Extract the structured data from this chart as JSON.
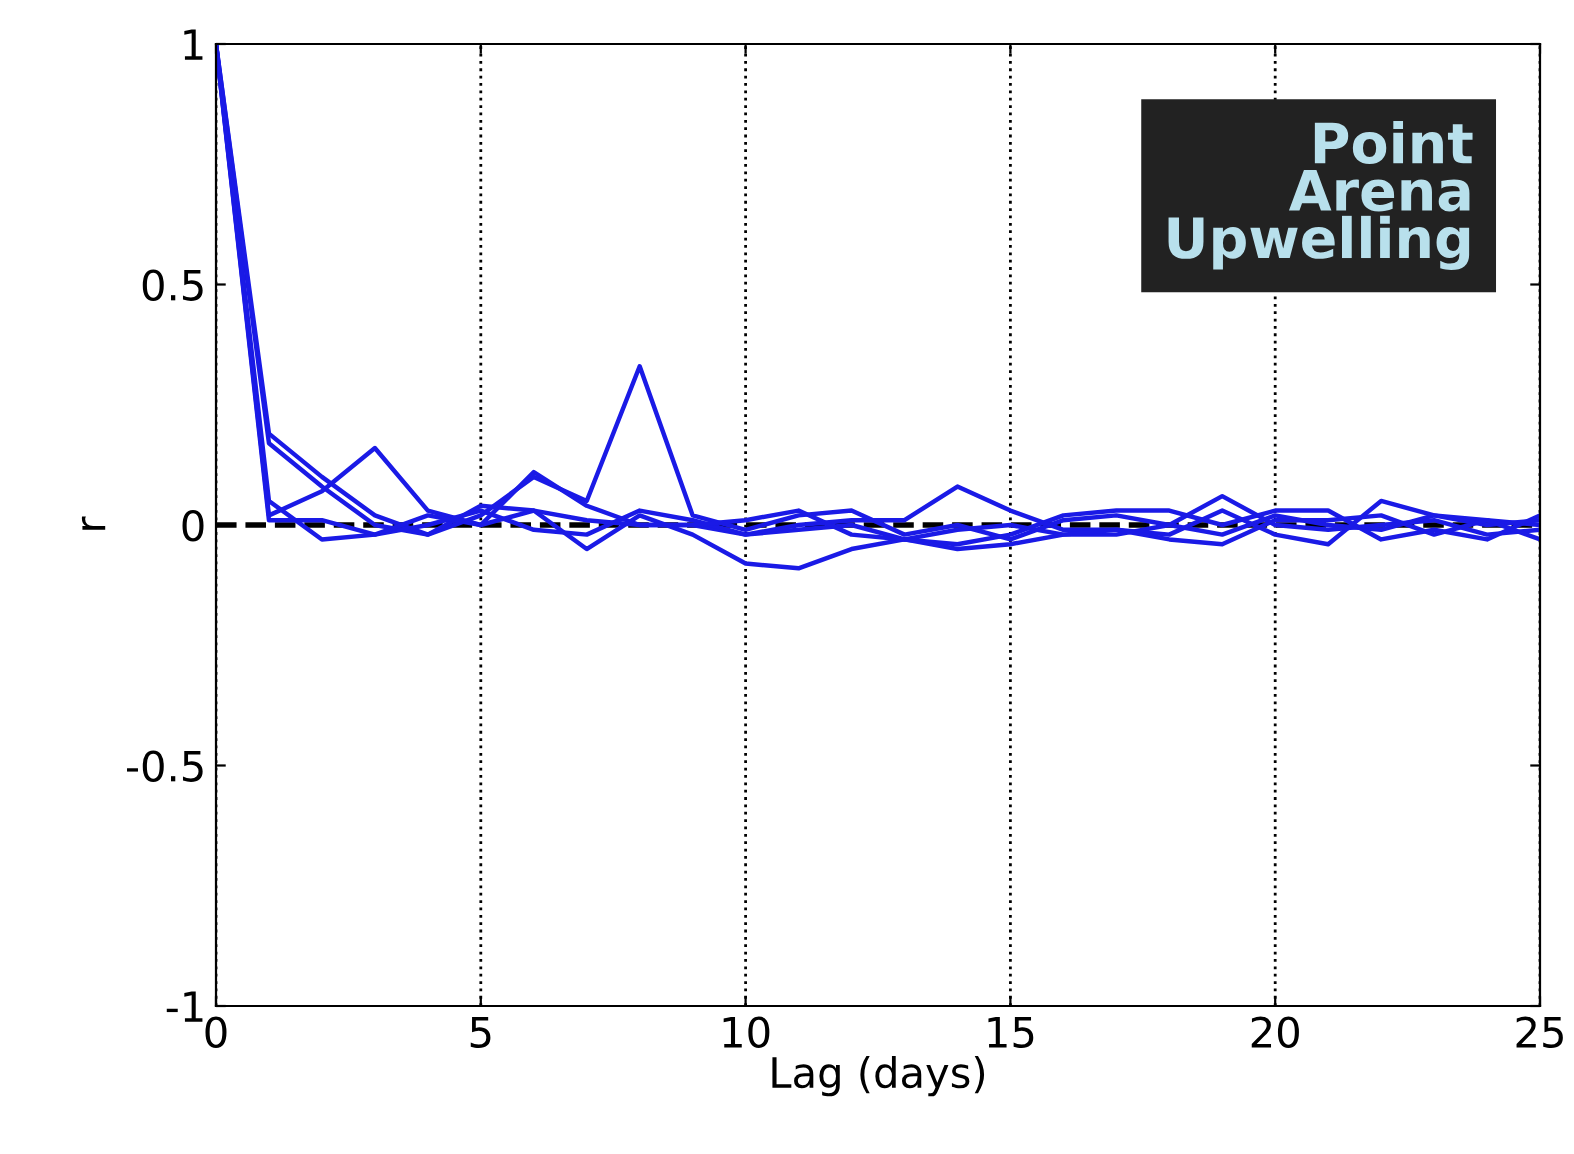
{
  "chart_data": {
    "type": "line",
    "xlabel": "Lag (days)",
    "ylabel": "r",
    "annotations": [
      "Point\nArena\nUpwelling"
    ],
    "x": [
      0,
      1,
      2,
      3,
      4,
      5,
      6,
      7,
      8,
      9,
      10,
      11,
      12,
      13,
      14,
      15,
      16,
      17,
      18,
      19,
      20,
      21,
      22,
      23,
      24,
      25
    ],
    "series": [
      {
        "color": "#1a1ae6",
        "values": [
          1,
          0.17,
          0.08,
          0.0,
          -0.02,
          0.02,
          0.1,
          0.05,
          0.33,
          0.02,
          -0.01,
          0.02,
          0.03,
          -0.02,
          0.0,
          -0.03,
          0.01,
          0.02,
          0.0,
          -0.02,
          0.02,
          0.0,
          -0.01,
          0.02,
          0.01,
          0.0
        ]
      },
      {
        "color": "#1a1ae6",
        "values": [
          1,
          0.02,
          0.07,
          0.16,
          0.03,
          0.0,
          0.11,
          0.04,
          0.0,
          0.0,
          -0.02,
          -0.01,
          0.0,
          -0.03,
          -0.01,
          0.0,
          -0.02,
          -0.02,
          0.0,
          0.06,
          0.0,
          -0.01,
          0.0,
          0.01,
          -0.02,
          -0.01
        ]
      },
      {
        "color": "#1a1ae6",
        "values": [
          1,
          0.19,
          0.1,
          0.02,
          -0.02,
          0.04,
          0.03,
          -0.05,
          0.02,
          -0.02,
          -0.08,
          -0.09,
          -0.05,
          -0.03,
          -0.04,
          -0.02,
          0.02,
          0.03,
          0.03,
          0.0,
          0.03,
          0.03,
          -0.03,
          -0.01,
          -0.03,
          0.02
        ]
      },
      {
        "color": "#1a1ae6",
        "values": [
          1,
          0.05,
          -0.03,
          -0.02,
          0.0,
          0.03,
          -0.01,
          -0.02,
          0.03,
          0.01,
          -0.02,
          0.0,
          0.01,
          0.01,
          0.08,
          0.03,
          -0.01,
          -0.01,
          -0.02,
          0.03,
          -0.02,
          -0.04,
          0.05,
          0.02,
          0.0,
          0.01
        ]
      },
      {
        "color": "#1a1ae6",
        "values": [
          1,
          0.01,
          0.01,
          -0.02,
          0.02,
          0.0,
          0.03,
          0.01,
          0.0,
          0.0,
          0.01,
          0.03,
          -0.02,
          -0.03,
          -0.05,
          -0.04,
          -0.02,
          -0.01,
          -0.03,
          -0.04,
          0.01,
          0.01,
          0.02,
          -0.02,
          0.01,
          -0.03
        ]
      }
    ],
    "xlim": [
      0,
      25
    ],
    "ylim": [
      -1,
      1
    ],
    "xticks": [
      0,
      5,
      10,
      15,
      20,
      25
    ],
    "yticks": [
      -1,
      -0.5,
      0,
      0.5,
      1
    ],
    "ref_lines": [
      {
        "axis": "y",
        "value": 0,
        "color": "#000000",
        "line_style": "dashed"
      }
    ],
    "grid": "x",
    "legend": false
  }
}
